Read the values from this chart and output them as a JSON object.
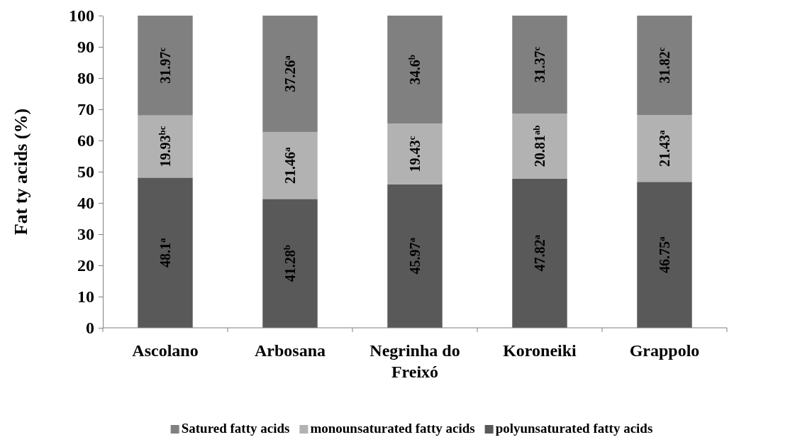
{
  "chart_data": {
    "type": "bar",
    "stacked": true,
    "ylabel": "Fat ty acids (%)",
    "categories": [
      "Ascolano",
      "Arbosana",
      "Negrinha do Freixó",
      "Koroneiki",
      "Grappolo"
    ],
    "ylim": [
      0,
      100
    ],
    "yticks": [
      0,
      10,
      20,
      30,
      40,
      50,
      60,
      70,
      80,
      90,
      100
    ],
    "grid": false,
    "legend": "bottom",
    "series": [
      {
        "name": "polyunsaturated fatty acids",
        "color": "#595959",
        "values": [
          48.1,
          41.28,
          45.97,
          47.82,
          46.75
        ],
        "value_labels": [
          "48.1$^{a}$",
          "41.28$^{b}$",
          "45.97$^{a}$",
          "47.82$^{a}$",
          "46.75$^{a}$"
        ]
      },
      {
        "name": "monounsaturated fatty acids",
        "color": "#b2b2b2",
        "values": [
          19.93,
          21.46,
          19.43,
          20.81,
          21.43
        ],
        "value_labels": [
          "19.93$^{bc}$",
          "21.46$^{a}$",
          "19.43$^{c}$",
          "20.81$^{ab}$",
          "21.43$^{a}$"
        ]
      },
      {
        "name": "Satured fatty acids",
        "color": "#808080",
        "values": [
          31.97,
          37.26,
          34.6,
          31.37,
          31.82
        ],
        "value_labels": [
          "31.97$^{c}$",
          "37.26$^{a}$",
          "34.6$^{b}$",
          "31.37$^{c}$",
          "31.82$^{c}$"
        ]
      }
    ]
  }
}
